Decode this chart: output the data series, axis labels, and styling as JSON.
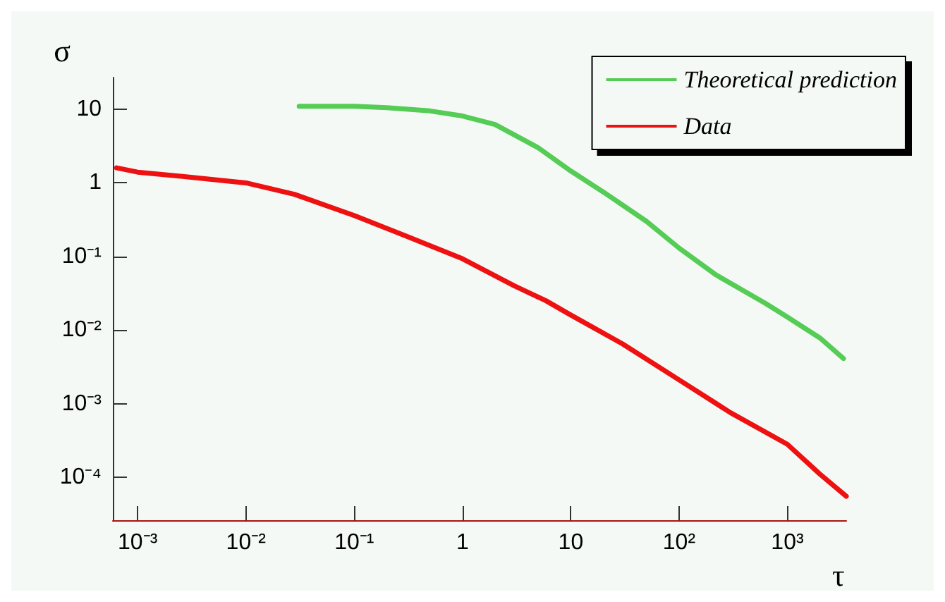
{
  "chart_data": {
    "type": "line",
    "xlabel": "τ",
    "ylabel": "σ",
    "log": "xy",
    "marker": "none",
    "grid": false,
    "legend": "top right",
    "xlim": [
      0.00059,
      3500
    ],
    "ylim": [
      2.6e-05,
      27
    ],
    "xticks": [
      {
        "value": 0.001,
        "label": "10⁻³"
      },
      {
        "value": 0.01,
        "label": "10⁻²"
      },
      {
        "value": 0.1,
        "label": "10⁻¹"
      },
      1,
      10,
      {
        "value": 100,
        "label": "10²"
      },
      {
        "value": 1000,
        "label": "10³"
      }
    ],
    "yticks": [
      {
        "value": 0.0001,
        "label": "10⁻⁴"
      },
      {
        "value": 0.001,
        "label": "10⁻³"
      },
      {
        "value": 0.01,
        "label": "10⁻²"
      },
      {
        "value": 0.1,
        "label": "10⁻¹"
      },
      1,
      10
    ],
    "series": [
      {
        "name": "Theoretical prediction",
        "color": "#55cc55",
        "x": [
          0.031,
          0.06,
          0.1,
          0.2,
          0.5,
          1,
          2,
          5,
          10,
          20,
          50,
          100,
          220,
          630,
          1000,
          2000,
          3300
        ],
        "values": [
          11,
          11,
          11,
          10.5,
          9.5,
          8.1,
          6.2,
          3,
          1.45,
          0.75,
          0.3,
          0.13,
          0.056,
          0.023,
          0.015,
          0.0078,
          0.0041
        ]
      },
      {
        "name": "Data",
        "color": "#ee1111",
        "x": [
          0.00064,
          0.001,
          0.003,
          0.01,
          0.028,
          0.1,
          0.3,
          1,
          3,
          5.9,
          10,
          30,
          100,
          300,
          1000,
          2000,
          3500
        ],
        "values": [
          1.6,
          1.4,
          1.2,
          1.0,
          0.7,
          0.36,
          0.19,
          0.093,
          0.04,
          0.025,
          0.016,
          0.0065,
          0.0021,
          0.00075,
          0.00028,
          0.00011,
          5.5e-05
        ]
      }
    ]
  }
}
